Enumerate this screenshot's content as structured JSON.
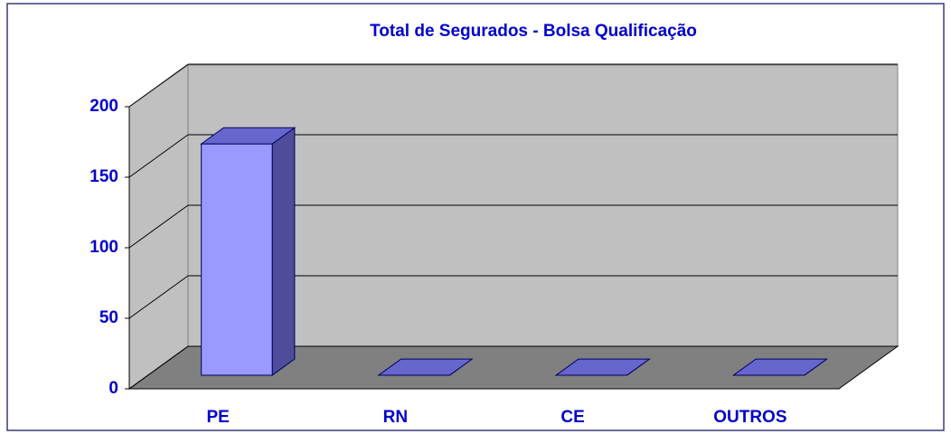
{
  "chart_data": {
    "type": "bar",
    "title": "Total de Segurados - Bolsa Qualificação",
    "categories": [
      "PE",
      "RN",
      "CE",
      "OUTROS"
    ],
    "values": [
      164,
      0,
      0,
      0
    ],
    "color": "#9999ff",
    "ylim": [
      0,
      200
    ],
    "yticks": [
      0,
      50,
      100,
      150,
      200
    ],
    "grid": true
  }
}
